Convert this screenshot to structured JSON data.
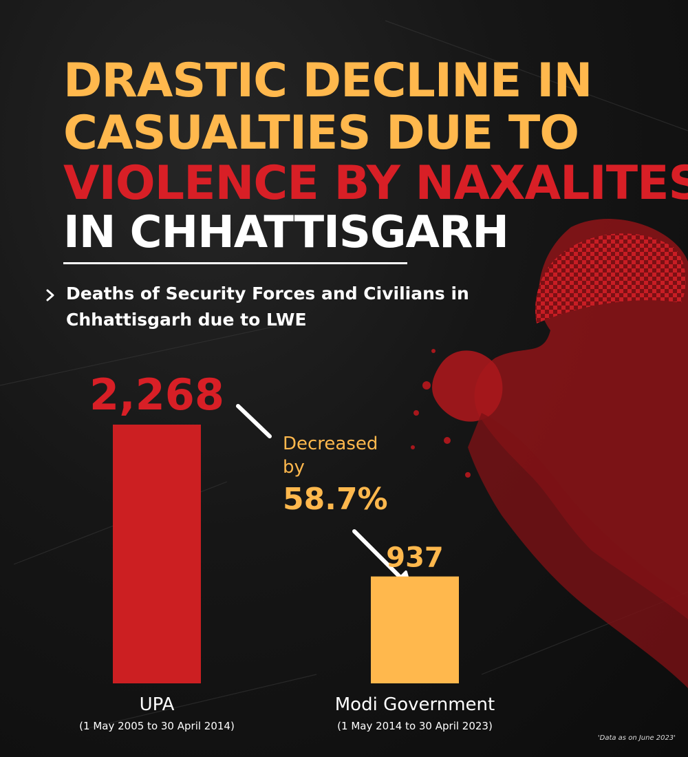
{
  "headline": {
    "line1": "DRASTIC DECLINE IN",
    "line2": "CASUALTIES DUE TO",
    "line3": "VIOLENCE BY NAXALITES",
    "line4": "IN CHHATTISGARH"
  },
  "subtitle": "Deaths of Security Forces and Civilians in Chhattisgarh due to LWE",
  "annotation": {
    "text": "Decreased by",
    "percent": "58.7%"
  },
  "footnote": "'Data as on June 2023'",
  "colors": {
    "background": "#121212",
    "headline_yellow": "#ffb84d",
    "headline_red": "#d81f26",
    "bar_upa": "#cc1f22",
    "bar_modi": "#ffb84d",
    "text_white": "#ffffff"
  },
  "icons": {
    "bullet": "chevron-right-icon",
    "decor": "bandit-silhouette-illustration"
  },
  "chart_data": {
    "type": "bar",
    "categories": [
      "UPA",
      "Modi Government"
    ],
    "category_periods": [
      "(1 May 2005 to 30 April 2014)",
      "(1 May 2014 to 30 April 2023)"
    ],
    "values": [
      2268,
      937
    ],
    "value_labels": [
      "2,268",
      "937"
    ],
    "title": "",
    "xlabel": "",
    "ylabel": "",
    "ylim": [
      0,
      2268
    ],
    "grid": false,
    "legend": "none",
    "bar_colors": [
      "#cc1f22",
      "#ffb84d"
    ]
  }
}
